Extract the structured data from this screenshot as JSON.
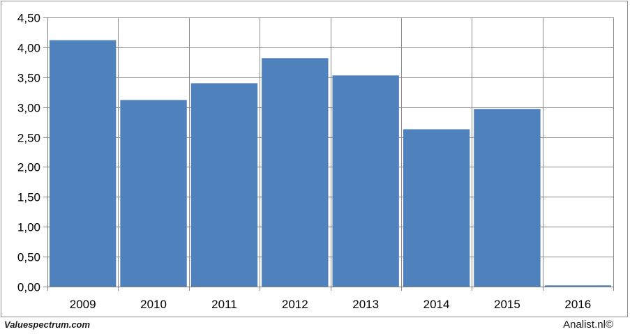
{
  "chart_data": {
    "type": "bar",
    "categories": [
      "2009",
      "2010",
      "2011",
      "2012",
      "2013",
      "2014",
      "2015",
      "2016"
    ],
    "values": [
      4.12,
      3.12,
      3.4,
      3.82,
      3.53,
      2.63,
      2.97,
      0.02
    ],
    "ylim": [
      0,
      4.5
    ],
    "yticks": [
      "0,00",
      "0,50",
      "1,00",
      "1,50",
      "2,00",
      "2,50",
      "3,00",
      "3,50",
      "4,00",
      "4,50"
    ],
    "grid": true,
    "bar_color": "#4f81bd",
    "grid_color": "#8c8c8c",
    "title": "",
    "xlabel": "",
    "ylabel": ""
  },
  "footer": {
    "left": "Valuespectrum.com",
    "right": "Analist.nl©"
  }
}
